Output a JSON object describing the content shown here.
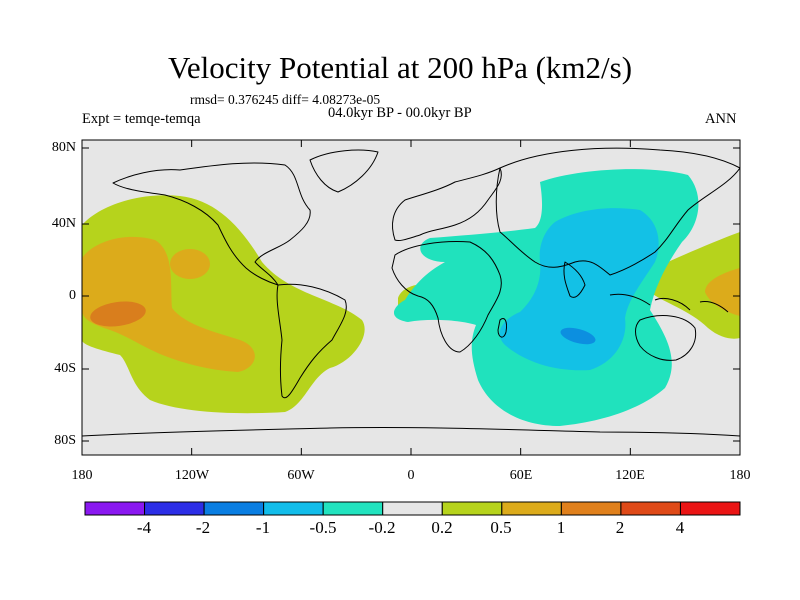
{
  "header": {
    "title": "Velocity Potential at 200 hPa (km2/s)",
    "stats": "rmsd= 0.376245 diff= 4.08273e-05",
    "period": "04.0kyr BP - 00.0kyr BP",
    "experiment": "Expt = temqe-temqa",
    "season": "ANN"
  },
  "map": {
    "y_ticks": [
      "80N",
      "40N",
      "0",
      "40S",
      "80S"
    ],
    "x_ticks": [
      "180",
      "120W",
      "60W",
      "0",
      "60E",
      "120E",
      "180"
    ],
    "colors": {
      "land_outline": "#000000",
      "background": "#e6e6e6",
      "positive_02": "#b6d31c",
      "positive_05": "#dcab1b",
      "positive_1": "#d97e1d",
      "negative_02": "#20e2bd",
      "negative_05": "#13c1e6",
      "negative_1": "#0c8fe0"
    }
  },
  "colorbar": {
    "labels": [
      "-4",
      "-2",
      "-1",
      "-0.5",
      "-0.2",
      "0.2",
      "0.5",
      "1",
      "2",
      "4"
    ],
    "colors": [
      "#8a18f0",
      "#2c2ee6",
      "#0a7ee2",
      "#12bdea",
      "#22e3bf",
      "#e6e6e6",
      "#b6d31c",
      "#dcab1b",
      "#e0801c",
      "#df4a18",
      "#ea1414"
    ]
  }
}
